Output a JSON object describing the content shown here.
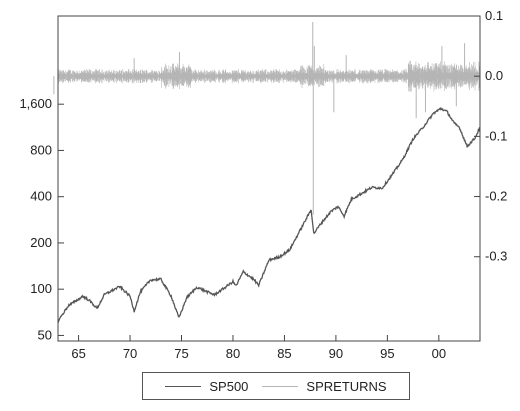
{
  "chart_data": {
    "type": "line",
    "x_ticks": [
      "65",
      "70",
      "75",
      "80",
      "85",
      "90",
      "95",
      "00"
    ],
    "x_tick_values": [
      1965,
      1970,
      1975,
      1980,
      1985,
      1990,
      1995,
      2000
    ],
    "xlim": [
      1963.0,
      2004.0
    ],
    "left_axis": {
      "scale": "log",
      "ticks": [
        "50",
        "100",
        "200",
        "400",
        "800",
        "1,600"
      ],
      "tick_values": [
        50,
        100,
        200,
        400,
        800,
        1600
      ],
      "ylim": [
        46,
        6000
      ]
    },
    "right_axis": {
      "ticks": [
        "0.1",
        "0.0",
        "-0.1",
        "-0.2",
        "-0.3"
      ],
      "tick_values": [
        0.1,
        0.0,
        -0.1,
        -0.2,
        -0.3
      ],
      "ylim": [
        -0.44,
        0.1
      ]
    },
    "series": [
      {
        "name": "SP500",
        "axis": "left",
        "color": "#555555",
        "x": [
          1963.0,
          1964.0,
          1965.0,
          1965.4,
          1966.0,
          1966.8,
          1967.5,
          1968.5,
          1969.0,
          1970.0,
          1970.4,
          1971.0,
          1972.0,
          1973.0,
          1974.0,
          1974.75,
          1975.5,
          1976.5,
          1977.5,
          1978.2,
          1979.0,
          1980.0,
          1980.3,
          1981.0,
          1982.0,
          1982.5,
          1983.5,
          1984.5,
          1985.5,
          1986.5,
          1987.6,
          1987.85,
          1988.5,
          1989.5,
          1990.2,
          1990.8,
          1991.5,
          1992.5,
          1993.5,
          1994.5,
          1995.5,
          1996.5,
          1997.5,
          1998.5,
          1999.5,
          2000.2,
          2000.8,
          2001.5,
          2002.0,
          2002.75,
          2003.5,
          2004.0
        ],
        "y": [
          62,
          78,
          86,
          90,
          85,
          75,
          92,
          100,
          104,
          90,
          72,
          96,
          115,
          116,
          90,
          65,
          88,
          103,
          96,
          92,
          100,
          112,
          105,
          130,
          116,
          106,
          155,
          162,
          180,
          240,
          330,
          230,
          265,
          320,
          345,
          300,
          385,
          420,
          460,
          455,
          560,
          700,
          950,
          1140,
          1400,
          1500,
          1430,
          1200,
          1130,
          850,
          960,
          1130
        ]
      },
      {
        "name": "SPRETURNS",
        "axis": "right",
        "color": "#b5b5b5",
        "spikes": [
          {
            "x": 1987.8,
            "y": -0.23
          },
          {
            "x": 1987.75,
            "y": 0.09
          },
          {
            "x": 1962.6,
            "y": -0.03
          },
          {
            "x": 1970.4,
            "y": 0.03
          },
          {
            "x": 1974.8,
            "y": 0.04
          },
          {
            "x": 1987.9,
            "y": 0.05
          },
          {
            "x": 1989.8,
            "y": -0.06
          },
          {
            "x": 1991.0,
            "y": 0.035
          },
          {
            "x": 1997.8,
            "y": -0.07
          },
          {
            "x": 1998.7,
            "y": -0.06
          },
          {
            "x": 2000.3,
            "y": 0.05
          },
          {
            "x": 2001.7,
            "y": -0.05
          },
          {
            "x": 2002.5,
            "y": 0.055
          }
        ]
      }
    ],
    "legend": {
      "position": "bottom",
      "entries": [
        "SP500",
        "SPRETURNS"
      ]
    },
    "grid": false
  }
}
